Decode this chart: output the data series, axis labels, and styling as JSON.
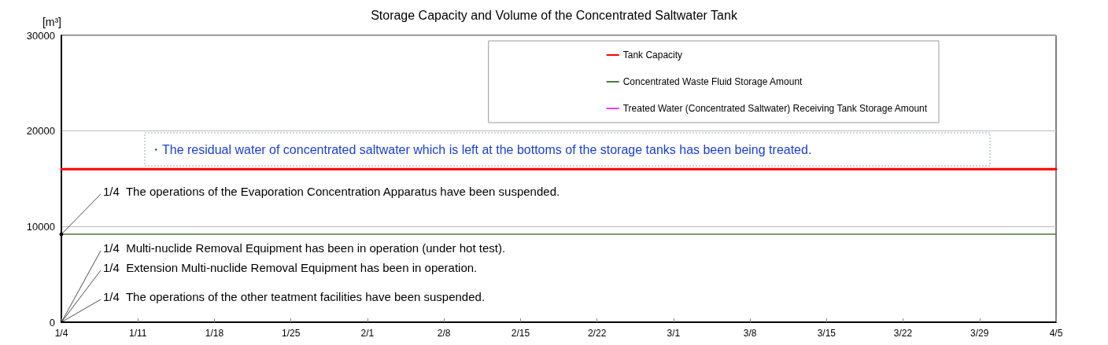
{
  "chart_data": {
    "type": "line",
    "title": "Storage Capacity and Volume of the Concentrated Saltwater Tank",
    "ylabel": "[m³]",
    "xlim": [
      "--01-04",
      "--04-05"
    ],
    "xticks": [
      {
        "value": "--01-04",
        "label": "1/4"
      },
      {
        "value": "--01-11",
        "label": "1/11"
      },
      {
        "value": "--01-18",
        "label": "1/18"
      },
      {
        "value": "--01-25",
        "label": "1/25"
      },
      {
        "value": "--02-01",
        "label": "2/1"
      },
      {
        "value": "--02-08",
        "label": "2/8"
      },
      {
        "value": "--02-15",
        "label": "2/15"
      },
      {
        "value": "--02-22",
        "label": "2/22"
      },
      {
        "value": "--03-01",
        "label": "3/1"
      },
      {
        "value": "--03-08",
        "label": "3/8"
      },
      {
        "value": "--03-15",
        "label": "3/15"
      },
      {
        "value": "--03-22",
        "label": "3/22"
      },
      {
        "value": "--03-29",
        "label": "3/29"
      },
      {
        "value": "--04-05",
        "label": "4/5"
      }
    ],
    "ylim": [
      0,
      30000
    ],
    "yticks": [
      0,
      10000,
      20000,
      30000
    ],
    "grid": "y",
    "legend": "top right",
    "marker": "none",
    "line_style": "solid",
    "series": [
      {
        "name": "Tank Capacity",
        "color": "#ff0000",
        "x": [
          "--01-04",
          "--04-05"
        ],
        "values": [
          16000,
          16000
        ]
      },
      {
        "name": "Concentrated Waste Fluid Storage Amount",
        "color": "#4f7a3a",
        "x": [
          "--01-04",
          "--04-05"
        ],
        "values": [
          9200,
          9200
        ]
      },
      {
        "name": "Treated Water (Concentrated Saltwater) Receiving Tank Storage Amount",
        "color": "#ff33ff",
        "values": [
          null,
          null
        ]
      }
    ],
    "annotations": [
      "・The residual water of concentrated saltwater which is left at the bottoms of the storage tanks has been being treated.",
      {
        "text": "1/4  The operations of the Evaporation Concentration Apparatus have been suspended.",
        "x": "--01-04",
        "y": 9200
      },
      "1/4  Multi-nuclide Removal Equipment has been in operation (under hot test).",
      "1/4  Extension Multi-nuclide Removal Equipment has been in operation.",
      "1/4  The operations of the other teatment facilities have been suspended."
    ]
  }
}
